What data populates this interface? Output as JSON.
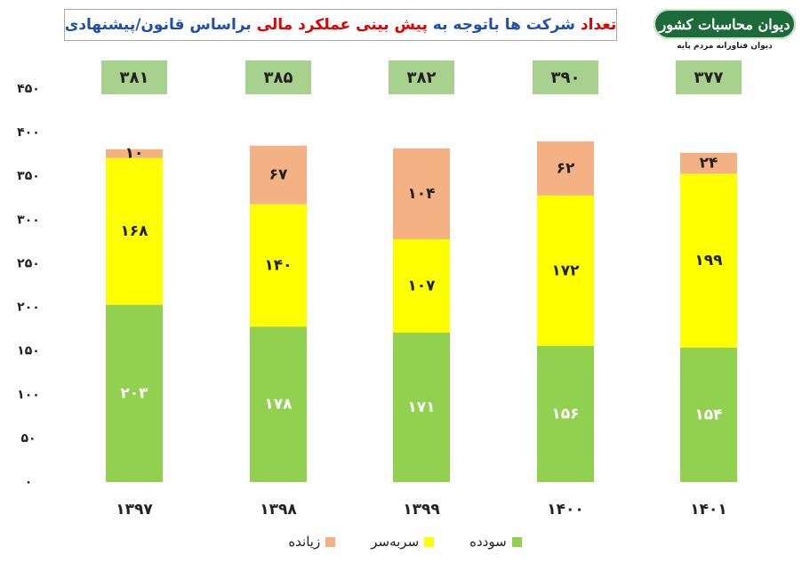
{
  "title": {
    "parts": [
      {
        "text": "تعداد",
        "color": "#e00000"
      },
      {
        "text": " شرکت ها باتوجه به ",
        "color": "#1f4fa8"
      },
      {
        "text": "پیش بینی عملکرد مالی",
        "color": "#e00000"
      },
      {
        "text": " براساس قانون/پیشنهادی",
        "color": "#1f4fa8"
      }
    ]
  },
  "logo": {
    "badge_text": "دیوان محاسبات کشور",
    "subtitle": "دیوان فناورانه مردم پایه"
  },
  "colors": {
    "profit": "#92d050",
    "breakeven": "#ffff00",
    "loss": "#f4b183",
    "total_box": "#a9d18e"
  },
  "chart_data": {
    "type": "bar",
    "stacked": true,
    "categories": [
      "۱۳۹۷",
      "۱۳۹۸",
      "۱۳۹۹",
      "۱۴۰۰",
      "۱۴۰۱"
    ],
    "series": [
      {
        "name": "سودده",
        "key": "profit",
        "values": [
          203,
          178,
          171,
          156,
          154
        ],
        "labels": [
          "۲۰۳",
          "۱۷۸",
          "۱۷۱",
          "۱۵۶",
          "۱۵۴"
        ]
      },
      {
        "name": "سربه‌سر",
        "key": "breakeven",
        "values": [
          168,
          140,
          107,
          172,
          199
        ],
        "labels": [
          "۱۶۸",
          "۱۴۰",
          "۱۰۷",
          "۱۷۲",
          "۱۹۹"
        ]
      },
      {
        "name": "زیانده",
        "key": "loss",
        "values": [
          10,
          67,
          104,
          62,
          24
        ],
        "labels": [
          "۱۰",
          "۶۷",
          "۱۰۴",
          "۶۲",
          "۲۴"
        ]
      }
    ],
    "totals": [
      381,
      385,
      382,
      390,
      377
    ],
    "total_labels": [
      "۳۸۱",
      "۳۸۵",
      "۳۸۲",
      "۳۹۰",
      "۳۷۷"
    ],
    "ylim": [
      0,
      450
    ],
    "yticks": [
      0,
      50,
      100,
      150,
      200,
      250,
      300,
      350,
      400,
      450
    ],
    "ytick_labels": [
      "۰",
      "۵۰",
      "۱۰۰",
      "۱۵۰",
      "۲۰۰",
      "۲۵۰",
      "۳۰۰",
      "۳۵۰",
      "۴۰۰",
      "۴۵۰"
    ],
    "grid": false,
    "legend_position": "bottom"
  }
}
